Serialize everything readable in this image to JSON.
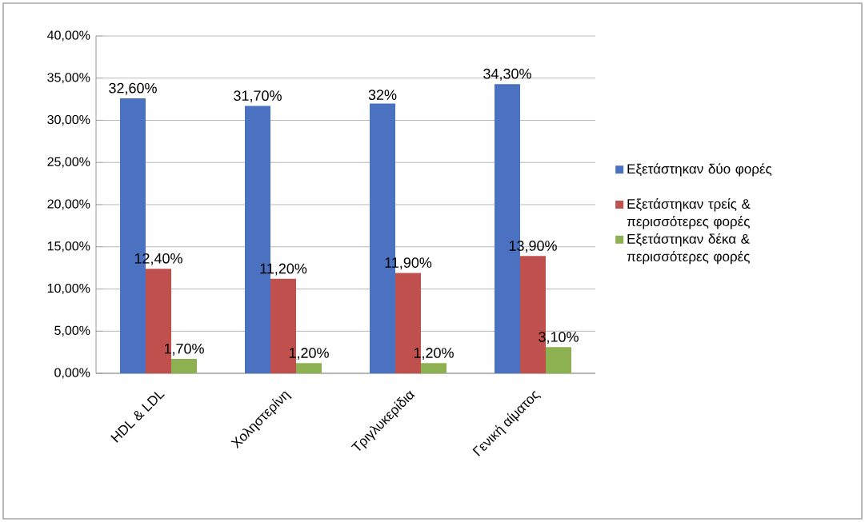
{
  "chart_data": {
    "type": "bar",
    "categories": [
      "HDL & LDL",
      "Χοληστερίνη",
      "Τριγλυκερίδια",
      "Γενική αίματος"
    ],
    "series": [
      {
        "name": "Εξετάστηκαν δύο φορές",
        "color": "#4a72c0",
        "values": [
          32.6,
          31.7,
          32,
          34.3
        ],
        "value_labels": [
          "32,60%",
          "31,70%",
          "32%",
          "34,30%"
        ]
      },
      {
        "name": "Εξετάστηκαν τρείς & περισσότερες φορές",
        "color": "#c0504d",
        "values": [
          12.4,
          11.2,
          11.9,
          13.9
        ],
        "value_labels": [
          "12,40%",
          "11,20%",
          "11,90%",
          "13,90%"
        ]
      },
      {
        "name": "Εξετάστηκαν δέκα & περισσότερες φορές",
        "color": "#8db050",
        "values": [
          1.7,
          1.2,
          1.2,
          3.1
        ],
        "value_labels": [
          "1,70%",
          "1,20%",
          "1,20%",
          "3,10%"
        ]
      }
    ],
    "ylim": [
      0,
      40
    ],
    "yticks": [
      {
        "value": 0,
        "label": "0,00%"
      },
      {
        "value": 5,
        "label": "5,00%"
      },
      {
        "value": 10,
        "label": "10,00%"
      },
      {
        "value": 15,
        "label": "15,00%"
      },
      {
        "value": 20,
        "label": "20,00%"
      },
      {
        "value": 25,
        "label": "25,00%"
      },
      {
        "value": 30,
        "label": "30,00%"
      },
      {
        "value": 35,
        "label": "35,00%"
      },
      {
        "value": 40,
        "label": "40,00%"
      }
    ],
    "grid": "y",
    "legend": "right"
  }
}
